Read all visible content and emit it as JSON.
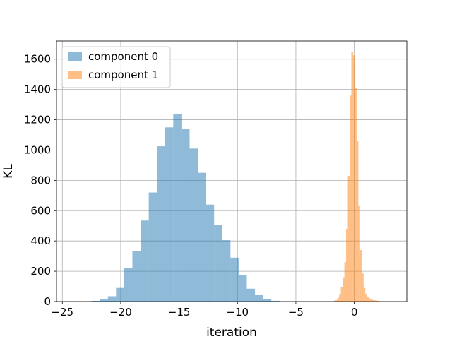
{
  "chart_data": {
    "type": "bar",
    "title": "",
    "xlabel": "iteration",
    "ylabel": "KL",
    "xlim": [
      -25.5,
      4.5
    ],
    "ylim": [
      0,
      1720
    ],
    "x_ticks": [
      -25,
      -20,
      -15,
      -10,
      -5,
      0
    ],
    "y_ticks": [
      0,
      200,
      400,
      600,
      800,
      1000,
      1200,
      1400,
      1600
    ],
    "grid": true,
    "legend_position": "top-left",
    "series": [
      {
        "name": "component 0",
        "color": "#1f77b4",
        "opacity": 0.5,
        "bin_edges": [
          -22.5,
          -21.8,
          -21.1,
          -20.4,
          -19.7,
          -19.0,
          -18.3,
          -17.6,
          -16.9,
          -16.2,
          -15.5,
          -14.8,
          -14.1,
          -13.4,
          -12.7,
          -12.0,
          -11.3,
          -10.6,
          -9.9,
          -9.2,
          -8.5,
          -7.8,
          -7.1,
          -6.4
        ],
        "values": [
          5,
          15,
          35,
          90,
          220,
          335,
          535,
          720,
          1025,
          1150,
          1240,
          1140,
          1010,
          850,
          640,
          505,
          405,
          290,
          175,
          85,
          45,
          15,
          5
        ]
      },
      {
        "name": "component 1",
        "color": "#ff7f0e",
        "opacity": 0.5,
        "bin_edges": [
          -1.75,
          -1.6,
          -1.45,
          -1.3,
          -1.15,
          -1.0,
          -0.85,
          -0.7,
          -0.55,
          -0.4,
          -0.25,
          -0.1,
          0.05,
          0.2,
          0.35,
          0.5,
          0.65,
          0.8,
          0.95,
          1.1,
          1.25,
          1.4,
          1.55,
          1.7,
          1.85,
          2.0,
          2.15
        ],
        "values": [
          5,
          10,
          25,
          50,
          95,
          160,
          260,
          480,
          830,
          1360,
          1650,
          1625,
          1410,
          1060,
          635,
          340,
          185,
          90,
          50,
          30,
          20,
          15,
          10,
          8,
          6,
          5
        ]
      }
    ]
  }
}
